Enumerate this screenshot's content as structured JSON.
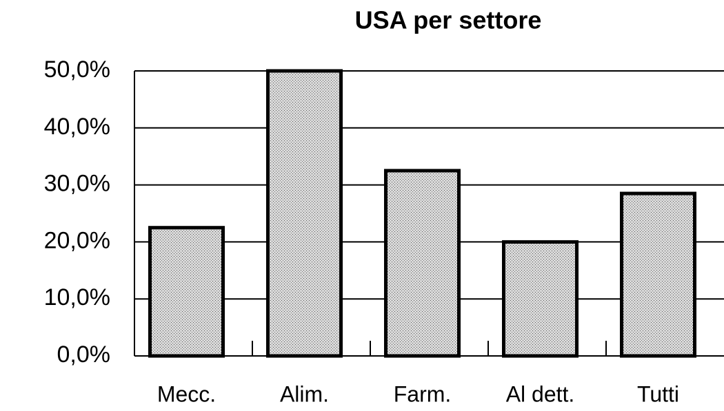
{
  "chart_data": {
    "type": "bar",
    "title": "USA per settore",
    "categories": [
      "Mecc.",
      "Alim.",
      "Farm.",
      "Al dett.",
      "Tutti"
    ],
    "values": [
      22.5,
      50,
      32.5,
      20,
      28.5
    ],
    "color": "#c9c9c9",
    "ylim": [
      0,
      50
    ],
    "yticks": [
      {
        "value": 0,
        "label": "0,0%"
      },
      {
        "value": 10,
        "label": "10,0%"
      },
      {
        "value": 20,
        "label": "20,0%"
      },
      {
        "value": 30,
        "label": "30,0%"
      },
      {
        "value": 40,
        "label": "40,0%"
      },
      {
        "value": 50,
        "label": "50,0%"
      }
    ],
    "grid": true
  }
}
